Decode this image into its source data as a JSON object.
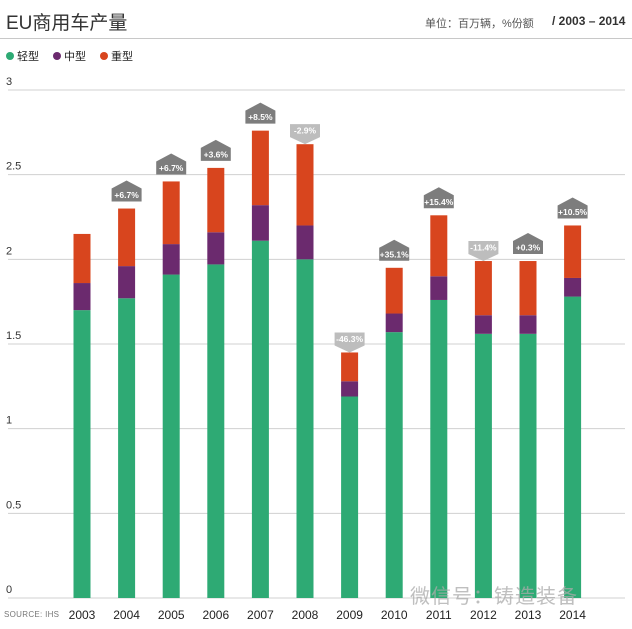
{
  "title": "EU商用车产量",
  "unit_label": "单位：百万辆，%份额",
  "years_label": "/ 2003 – 2014",
  "source": "SOURCE: IHS",
  "watermark": "微信号：铸造装备",
  "chart_data": {
    "type": "bar",
    "stacked": true,
    "categories": [
      "2003",
      "2004",
      "2005",
      "2006",
      "2007",
      "2008",
      "2009",
      "2010",
      "2011",
      "2012",
      "2013",
      "2014"
    ],
    "series": [
      {
        "name": "轻型",
        "color": "#2eaa74",
        "values": [
          1.7,
          1.77,
          1.91,
          1.97,
          2.11,
          2.0,
          1.19,
          1.57,
          1.76,
          1.56,
          1.56,
          1.78
        ]
      },
      {
        "name": "中型",
        "color": "#6b2a6e",
        "values": [
          0.16,
          0.19,
          0.18,
          0.19,
          0.21,
          0.2,
          0.09,
          0.11,
          0.14,
          0.11,
          0.11,
          0.11
        ]
      },
      {
        "name": "重型",
        "color": "#d8451e",
        "values": [
          0.29,
          0.34,
          0.37,
          0.38,
          0.44,
          0.48,
          0.17,
          0.27,
          0.36,
          0.32,
          0.32,
          0.31
        ]
      }
    ],
    "annotations": [
      "",
      "+6.7%",
      "+6.7%",
      "+3.6%",
      "+8.5%",
      "-2.9%",
      "-46.3%",
      "+35.1%",
      "+15.4%",
      "-11.4%",
      "+0.3%",
      "+10.5%"
    ],
    "annotation_direction": [
      "",
      "up",
      "up",
      "up",
      "up",
      "down",
      "down",
      "up",
      "up",
      "down",
      "up",
      "up"
    ],
    "ylim": [
      0,
      3
    ],
    "yticks": [
      "0",
      "0.5",
      "1",
      "1.5",
      "2",
      "2.5",
      "3"
    ],
    "grid": true,
    "legend_position": "top-left"
  },
  "colors": {
    "up_badge": "#7d7d7d",
    "down_badge": "#bdbdbd",
    "grid": "#d0d0d0"
  }
}
